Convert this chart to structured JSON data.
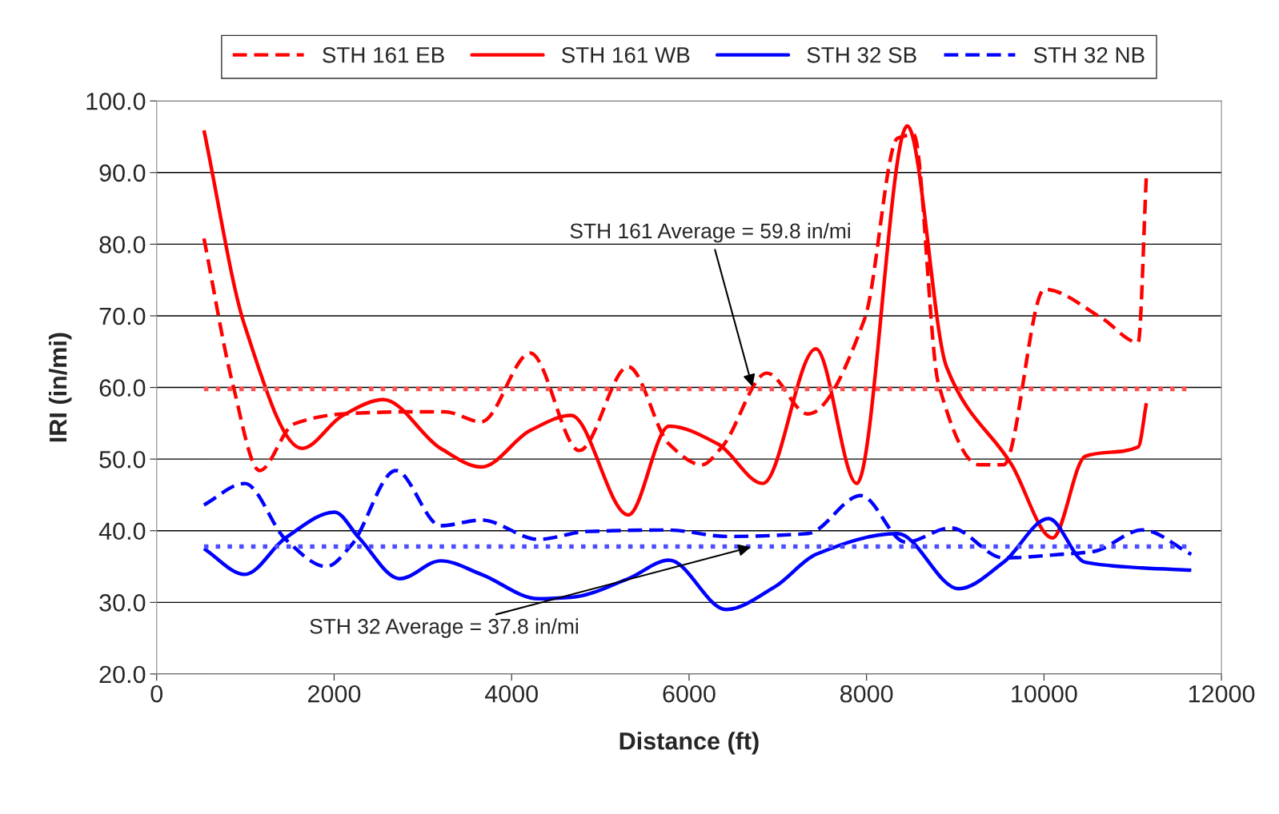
{
  "chart_data": {
    "type": "line",
    "xlabel": "Distance (ft)",
    "ylabel": "IRI (in/mi)",
    "xlim": [
      0,
      12000
    ],
    "xticks": [
      0,
      2000,
      4000,
      6000,
      8000,
      10000,
      12000
    ],
    "ylim": [
      20,
      100
    ],
    "yticks": [
      {
        "value": 20,
        "label": "20.0"
      },
      {
        "value": 30,
        "label": "30.0"
      },
      {
        "value": 40,
        "label": "40.0"
      },
      {
        "value": 50,
        "label": "50.0"
      },
      {
        "value": 60,
        "label": "60.0"
      },
      {
        "value": 70,
        "label": "70.0"
      },
      {
        "value": 80,
        "label": "80.0"
      },
      {
        "value": 90,
        "label": "90.0"
      },
      {
        "value": 100,
        "label": "100.0"
      }
    ],
    "grid": "y",
    "legend": "top",
    "marker": "none",
    "series": [
      {
        "name": "STH 161 EB",
        "color": "#ff0000",
        "line_style": "dashed",
        "x": [
          533,
          855,
          1159,
          1545,
          2097,
          2832,
          3246,
          3660,
          4211,
          4763,
          5315,
          5775,
          6143,
          6372,
          6878,
          7338,
          7982,
          8350,
          8533,
          8809,
          9269,
          9545,
          10005,
          10649,
          11062,
          11154
        ],
        "values": [
          80.8,
          60.6,
          48.4,
          54.9,
          56.3,
          56.6,
          56.6,
          55.2,
          64.8,
          51.2,
          62.9,
          52.1,
          49.2,
          51.7,
          62.0,
          56.3,
          69.7,
          94.8,
          95.3,
          60.6,
          49.2,
          49.2,
          73.7,
          69.7,
          66.3,
          89.6
        ]
      },
      {
        "name": "STH 161 WB",
        "color": "#ff0000",
        "line_style": "solid",
        "x": [
          533,
          993,
          1637,
          2097,
          2556,
          3200,
          3660,
          4211,
          4671,
          5315,
          5775,
          6326,
          6832,
          7430,
          7890,
          8460,
          8901,
          9637,
          10097,
          10464,
          11062,
          11154
        ],
        "values": [
          95.9,
          68.6,
          51.5,
          56.1,
          58.3,
          51.5,
          48.9,
          54.0,
          56.1,
          42.2,
          54.6,
          52.1,
          46.6,
          65.4,
          46.6,
          96.5,
          62.9,
          49.2,
          39.0,
          50.4,
          51.7,
          57.8
        ]
      },
      {
        "name": "STH 32 SB",
        "color": "#0000ff",
        "line_style": "solid",
        "x": [
          533,
          993,
          1453,
          2005,
          2281,
          2740,
          3200,
          3660,
          4303,
          4671,
          5315,
          5775,
          6418,
          6970,
          7430,
          8350,
          9039,
          9545,
          10051,
          10464,
          11108,
          11660
        ],
        "values": [
          37.5,
          33.9,
          39.0,
          42.6,
          39.0,
          33.3,
          35.8,
          33.9,
          30.5,
          30.7,
          33.3,
          35.9,
          29.0,
          32.2,
          36.7,
          39.6,
          31.9,
          35.6,
          41.7,
          35.6,
          34.8,
          34.5
        ]
      },
      {
        "name": "STH 32 NB",
        "color": "#0000ff",
        "line_style": "dashed",
        "x": [
          533,
          993,
          1453,
          1913,
          2189,
          2695,
          3200,
          3660,
          4303,
          4855,
          5775,
          6418,
          7338,
          7936,
          8441,
          8947,
          9545,
          10189,
          10557,
          11108,
          11660
        ],
        "values": [
          43.6,
          46.6,
          38.8,
          35.0,
          37.9,
          48.4,
          40.7,
          41.5,
          38.8,
          39.9,
          40.1,
          39.2,
          39.6,
          44.9,
          38.4,
          40.4,
          36.2,
          36.7,
          37.1,
          40.1,
          36.7
        ]
      }
    ],
    "ref_lines": [
      {
        "axis": "y",
        "value": 59.8,
        "label": "STH 161 Average = 59.8 in/mi",
        "color": "#ff4d4d",
        "line_style": "dotted"
      },
      {
        "axis": "y",
        "value": 37.8,
        "label": "STH 32 Average = 37.8 in/mi",
        "color": "#4d4dff",
        "line_style": "dotted"
      }
    ]
  }
}
